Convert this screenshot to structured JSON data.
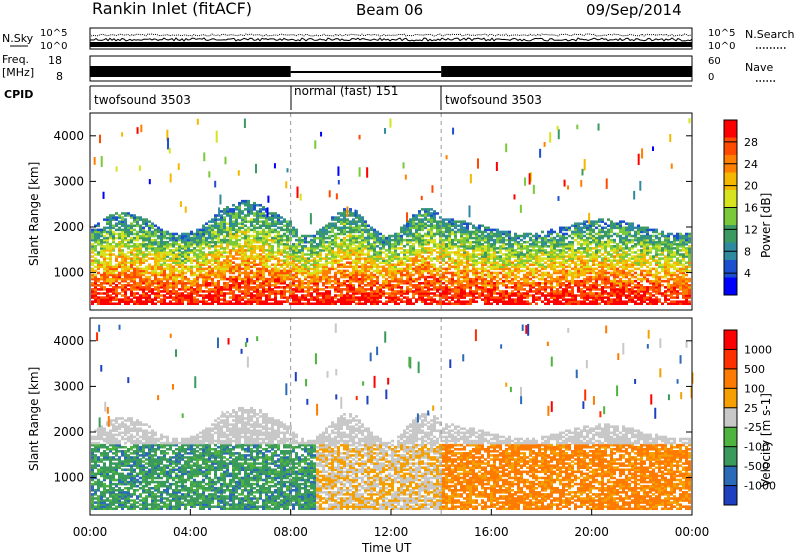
{
  "header": {
    "station": "Rankin Inlet (fitACF)",
    "beam": "Beam 06",
    "date": "09/Sep/2014"
  },
  "status_panel": {
    "nsky_label": "N.Sky",
    "nsky_ticks": [
      "10^5",
      "10^0"
    ],
    "nsearch_label": "N.Search",
    "nsearch_ticks": [
      "10^5",
      "10^0"
    ],
    "freq_label": "Freq.",
    "freq_unit": "[MHz]",
    "freq_ticks": [
      "18",
      "8"
    ],
    "nave_label": "Nave",
    "nave_ticks": [
      "60",
      "0"
    ],
    "cpid_label": "CPID",
    "cpid_segments": [
      {
        "label": "twofsound 3503",
        "start_h": 0,
        "end_h": 8
      },
      {
        "label": "normal (fast) 151",
        "start_h": 8,
        "end_h": 14
      },
      {
        "label": "twofsound 3503",
        "start_h": 14,
        "end_h": 24
      }
    ]
  },
  "chart_data": [
    {
      "type": "heatmap",
      "title": "",
      "xlabel": "",
      "ylabel": "Slant Range [km]",
      "xlim": [
        0,
        24
      ],
      "ylim": [
        180,
        4500
      ],
      "yticks": [
        "1000",
        "2000",
        "3000",
        "4000"
      ],
      "colorbar": {
        "label": "Power [dB]",
        "ticks": [
          "4",
          "8",
          "12",
          "16",
          "20",
          "24",
          "28"
        ],
        "colors": [
          "#0000ff",
          "#1c4fd0",
          "#2f8aa0",
          "#3b9a62",
          "#7ac93a",
          "#d6e31e",
          "#f5b800",
          "#ff8000",
          "#ff4a00",
          "#ff0000"
        ]
      }
    },
    {
      "type": "heatmap",
      "title": "",
      "xlabel": "Time UT",
      "ylabel": "Slant Range [km]",
      "xlim": [
        0,
        24
      ],
      "ylim": [
        180,
        4500
      ],
      "xticks": [
        "00:00",
        "04:00",
        "08:00",
        "12:00",
        "16:00",
        "20:00",
        "00:00"
      ],
      "yticks": [
        "1000",
        "2000",
        "3000",
        "4000"
      ],
      "colorbar": {
        "label": "Velocity [m s-1]",
        "ticks": [
          "1000",
          "500",
          "100",
          "25",
          "-25",
          "-100",
          "-500",
          "-1000"
        ],
        "colors": [
          "#1e3fbf",
          "#2b6ab8",
          "#3a9a5c",
          "#4fb33f",
          "#c8c8c8",
          "#f5a000",
          "#ff7a00",
          "#ff3000",
          "#ff0000"
        ]
      }
    }
  ]
}
